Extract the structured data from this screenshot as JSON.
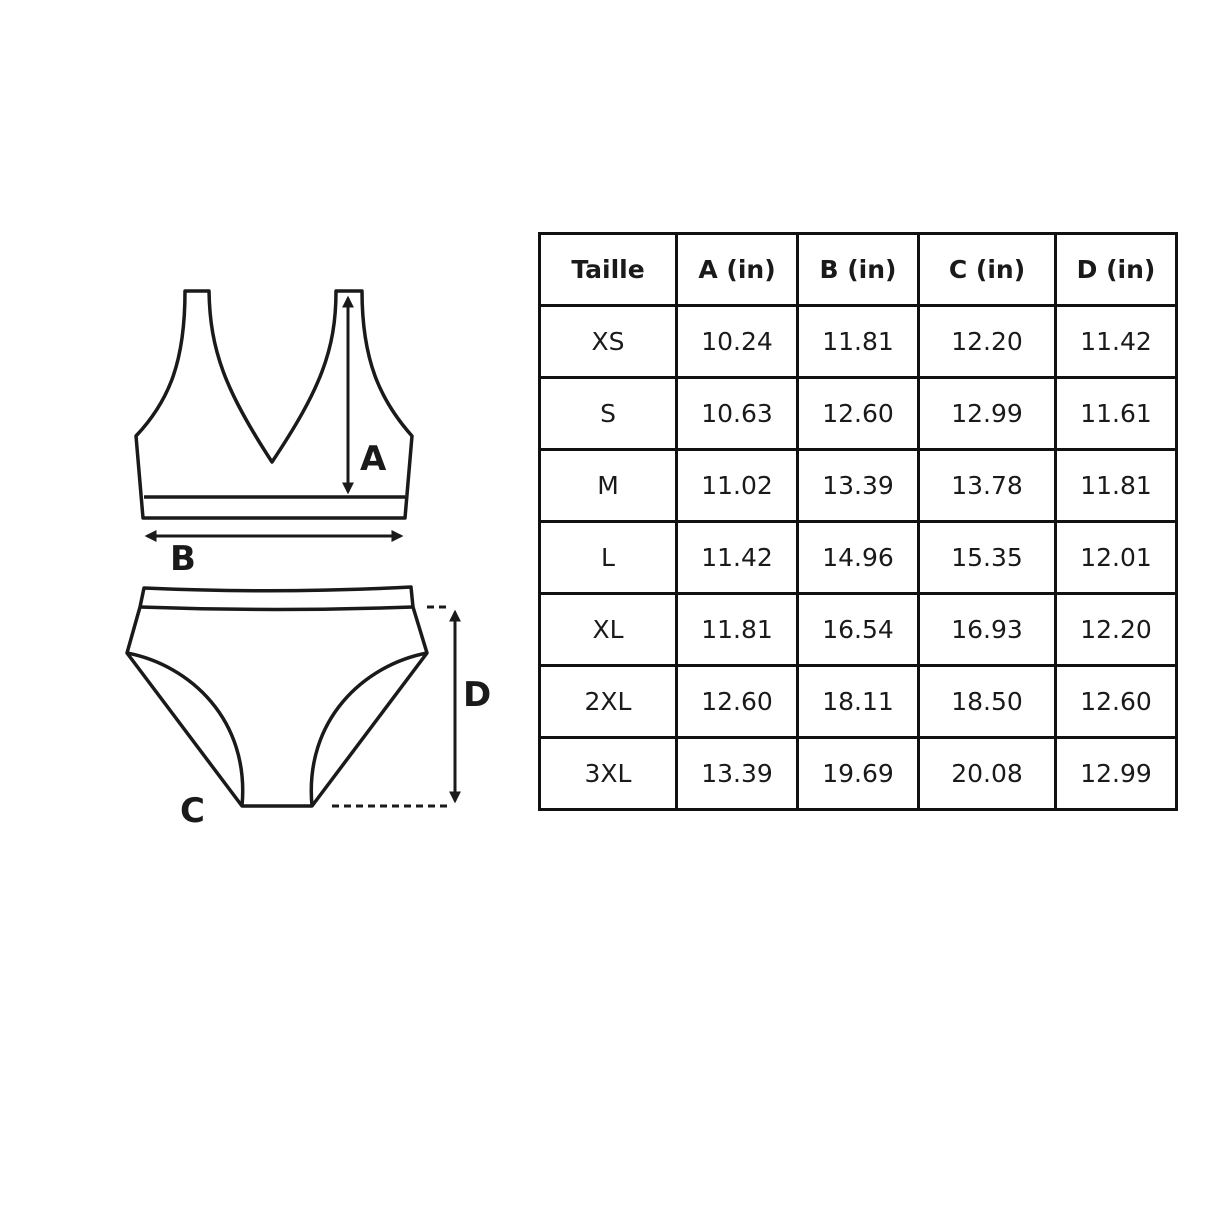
{
  "diagram": {
    "labels": {
      "a": "A",
      "b": "B",
      "c": "C",
      "d": "D"
    }
  },
  "table": {
    "headers": [
      "Taille",
      "A (in)",
      "B (in)",
      "C (in)",
      "D (in)"
    ],
    "rows": [
      [
        "XS",
        "10.24",
        "11.81",
        "12.20",
        "11.42"
      ],
      [
        "S",
        "10.63",
        "12.60",
        "12.99",
        "11.61"
      ],
      [
        "M",
        "11.02",
        "13.39",
        "13.78",
        "11.81"
      ],
      [
        "L",
        "11.42",
        "14.96",
        "15.35",
        "12.01"
      ],
      [
        "XL",
        "11.81",
        "16.54",
        "16.93",
        "12.20"
      ],
      [
        "2XL",
        "12.60",
        "18.11",
        "18.50",
        "12.60"
      ],
      [
        "3XL",
        "13.39",
        "19.69",
        "20.08",
        "12.99"
      ]
    ]
  }
}
